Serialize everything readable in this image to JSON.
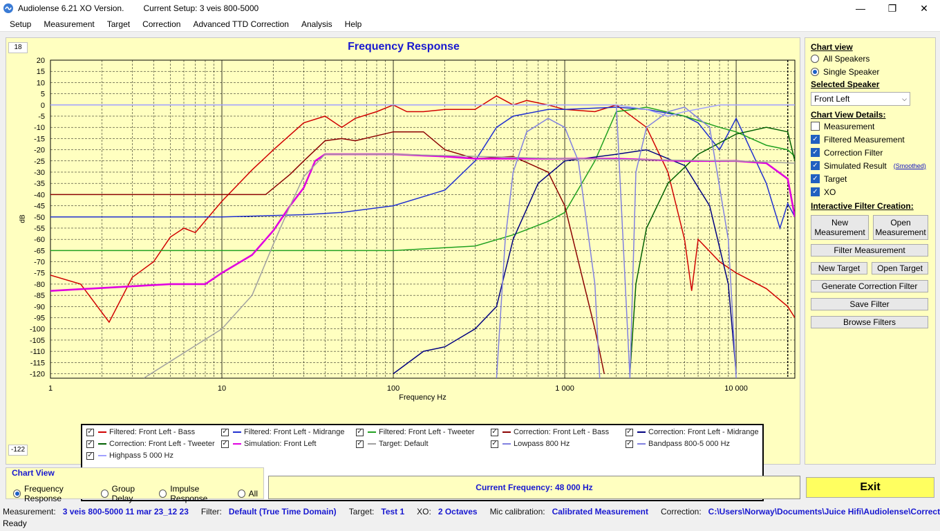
{
  "window": {
    "app_title": "Audiolense 6.21 XO Version.",
    "setup_title": "Current Setup: 3 veis 800-5000"
  },
  "menu": [
    "Setup",
    "Measurement",
    "Target",
    "Correction",
    "Advanced TTD Correction",
    "Analysis",
    "Help"
  ],
  "chart": {
    "title": "Frequency Response",
    "y_top_box": "18",
    "y_bottom_box": "-122",
    "ylabel": "dB",
    "xlabel": "Frequency Hz"
  },
  "chart_data": {
    "type": "line",
    "title": "Frequency Response",
    "xlabel": "Frequency Hz",
    "ylabel": "dB",
    "x_scale": "log",
    "xlim": [
      1,
      22000
    ],
    "ylim": [
      -122,
      20
    ],
    "x_ticks": [
      "1",
      "10",
      "100",
      "1 000",
      "10 000"
    ],
    "y_ticks": [
      "20",
      "15",
      "10",
      "5",
      "0",
      "-5",
      "-10",
      "-15",
      "-20",
      "-25",
      "-30",
      "-35",
      "-40",
      "-45",
      "-50",
      "-55",
      "-60",
      "-65",
      "-70",
      "-75",
      "-80",
      "-85",
      "-90",
      "-95",
      "-100",
      "-105",
      "-110",
      "-115",
      "-120"
    ],
    "grid": true,
    "series": [
      {
        "name": "Filtered: Front Left - Bass",
        "color": "#d00000",
        "x": [
          1,
          1.5,
          2.2,
          3,
          4,
          5,
          6,
          7,
          10,
          15,
          20,
          30,
          40,
          50,
          60,
          80,
          100,
          120,
          150,
          200,
          300,
          400,
          500,
          600,
          800,
          1000,
          1500,
          2000,
          3000,
          4000,
          5000,
          5500,
          6000,
          8000,
          10000,
          15000,
          20000,
          22000
        ],
        "y": [
          -76,
          -80,
          -97,
          -77,
          -70,
          -59,
          -55,
          -57,
          -43,
          -29,
          -20,
          -8,
          -5,
          -10,
          -6,
          -3,
          0,
          -3,
          -3,
          -2,
          -2,
          4,
          0,
          2,
          0,
          -2,
          -3,
          0,
          -10,
          -30,
          -60,
          -83,
          -60,
          -70,
          -75,
          -82,
          -90,
          -95
        ]
      },
      {
        "name": "Filtered: Front Left - Midrange",
        "color": "#2030d0",
        "x": [
          1,
          10,
          30,
          50,
          100,
          200,
          300,
          400,
          500,
          800,
          1000,
          2000,
          3000,
          5000,
          6000,
          8000,
          10000,
          15000,
          18000,
          20000,
          22000
        ],
        "y": [
          -50,
          -50,
          -49,
          -48,
          -45,
          -38,
          -25,
          -10,
          -5,
          -2,
          -2,
          -1,
          -2,
          -5,
          -8,
          -20,
          -6,
          -35,
          -55,
          -44,
          -50
        ]
      },
      {
        "name": "Filtered: Front Left - Tweeter",
        "color": "#20a020",
        "x": [
          1,
          100,
          300,
          500,
          800,
          1000,
          1500,
          2000,
          2500,
          3000,
          5000,
          8000,
          10000,
          15000,
          20000,
          22000
        ],
        "y": [
          -65,
          -65,
          -63,
          -58,
          -52,
          -48,
          -25,
          -3,
          -2,
          -1,
          -5,
          -10,
          -12,
          -18,
          -20,
          -23
        ]
      },
      {
        "name": "Correction: Front Left - Bass",
        "color": "#8b0000",
        "x": [
          1,
          10,
          18,
          25,
          30,
          40,
          50,
          60,
          100,
          150,
          200,
          300,
          500,
          800,
          1000,
          1500,
          1700
        ],
        "y": [
          -40,
          -40,
          -40,
          -31,
          -25,
          -16,
          -15,
          -16,
          -12,
          -12,
          -20,
          -24,
          -23,
          -30,
          -45,
          -100,
          -120
        ]
      },
      {
        "name": "Correction: Front Left - Midrange",
        "color": "#000080",
        "x": [
          100,
          150,
          200,
          300,
          400,
          500,
          700,
          1000,
          2000,
          3000,
          5000,
          7000,
          9000,
          10000
        ],
        "y": [
          -120,
          -110,
          -108,
          -100,
          -90,
          -60,
          -35,
          -25,
          -22,
          -20,
          -27,
          -45,
          -80,
          -120
        ]
      },
      {
        "name": "Correction: Front Left - Tweeter",
        "color": "#006000",
        "x": [
          2400,
          2600,
          3000,
          4000,
          6000,
          10000,
          15000,
          20000,
          22000
        ],
        "y": [
          -120,
          -80,
          -55,
          -35,
          -22,
          -13,
          -10,
          -12,
          -25
        ]
      },
      {
        "name": "Simulation: Front Left",
        "color": "#e000e0",
        "x": [
          1,
          5,
          8,
          10,
          15,
          20,
          25,
          30,
          35,
          40,
          50,
          100,
          200,
          300,
          500,
          1000,
          2000,
          5000,
          10000,
          15000,
          20000,
          22000
        ],
        "y": [
          -83,
          -80,
          -80,
          -75,
          -67,
          -56,
          -45,
          -37,
          -25,
          -22,
          -22,
          -22,
          -23,
          -24,
          -24,
          -24,
          -24,
          -25,
          -25,
          -26,
          -33,
          -50
        ]
      },
      {
        "name": "Target: Default",
        "color": "#a0a0a0",
        "x": [
          3.5,
          10,
          15,
          20,
          25,
          30,
          40,
          60,
          100,
          1000,
          10000,
          22000
        ],
        "y": [
          -122,
          -100,
          -85,
          -62,
          -45,
          -32,
          -22,
          -22,
          -22,
          -24,
          -25,
          -26
        ]
      },
      {
        "name": "Lowpass  800 Hz",
        "color": "#8080e0",
        "x": [
          400,
          450,
          500,
          600,
          800,
          1000,
          1200,
          1500,
          1600
        ],
        "y": [
          -122,
          -60,
          -30,
          -12,
          -6,
          -10,
          -25,
          -80,
          -122
        ]
      },
      {
        "name": "Bandpass   800-5 000 Hz",
        "color": "#8080e0",
        "x": [
          400,
          450,
          500,
          600,
          800,
          1000,
          1500,
          2000,
          2400,
          2600,
          3000,
          4000,
          5000,
          7000,
          9000,
          10000
        ],
        "y": [
          0,
          0,
          0,
          0,
          0,
          0,
          0,
          0,
          -122,
          -30,
          -10,
          -3,
          -1,
          -10,
          -60,
          -122
        ]
      },
      {
        "name": "Highpass  5 000 Hz",
        "color": "#a0a0ff",
        "x": [
          1,
          100,
          1000,
          2000,
          3000,
          4000,
          5000,
          8000,
          10000,
          15000,
          22000
        ],
        "y": [
          0,
          0,
          0,
          0,
          -2,
          -5,
          -3,
          0,
          0,
          0,
          0
        ]
      }
    ]
  },
  "legend": [
    {
      "label": "Filtered: Front Left - Bass",
      "color": "#d00000"
    },
    {
      "label": "Filtered: Front Left - Midrange",
      "color": "#2030d0"
    },
    {
      "label": "Filtered: Front Left - Tweeter",
      "color": "#20a020"
    },
    {
      "label": "Correction: Front Left - Bass",
      "color": "#8b0000"
    },
    {
      "label": "Correction: Front Left - Midrange",
      "color": "#000080"
    },
    {
      "label": "Correction: Front Left - Tweeter",
      "color": "#006000"
    },
    {
      "label": "Simulation: Front Left",
      "color": "#e000e0"
    },
    {
      "label": "Target: Default",
      "color": "#a0a0a0"
    },
    {
      "label": "Lowpass  800 Hz",
      "color": "#8080e0"
    },
    {
      "label": "Bandpass   800-5 000 Hz",
      "color": "#8080e0"
    },
    {
      "label": "Highpass  5 000 Hz",
      "color": "#a0a0ff"
    }
  ],
  "right_panel": {
    "chart_view_title": "Chart view",
    "all_speakers": "All Speakers",
    "single_speaker": "Single Speaker",
    "selected_speaker_title": "Selected Speaker",
    "selected_speaker_value": "Front Left",
    "details_title": "Chart View Details:",
    "measurement": "Measurement",
    "filtered_measurement": "Filtered Measurement",
    "correction_filter": "Correction Filter",
    "simulated_result": "Simulated Result",
    "smoothed": "(Smoothed)",
    "target": "Target",
    "xo": "XO",
    "interactive_title": "Interactive Filter Creation:",
    "new_measurement": "New Measurement",
    "open_measurement": "Open Measurement",
    "filter_measurement": "Filter Measurement",
    "new_target": "New Target",
    "open_target": "Open Target",
    "generate_correction_filter": "Generate Correction Filter",
    "save_filter": "Save Filter",
    "browse_filters": "Browse Filters"
  },
  "bottom": {
    "chart_view_title": "Chart View",
    "opt_frequency": "Frequency Response",
    "opt_group": "Group Delay",
    "opt_impulse": "Impulse Response",
    "opt_all": "All",
    "current_frequency": "Current Frequency: 48 000 Hz",
    "exit": "Exit"
  },
  "status": {
    "measurement_label": "Measurement:",
    "measurement_value": "3 veis 800-5000 11 mar 23_12 23",
    "filter_label": "Filter:",
    "filter_value": "Default (True Time Domain)",
    "target_label": "Target:",
    "target_value": "Test 1",
    "xo_label": "XO:",
    "xo_value": "2 Octaves",
    "mic_label": "Mic calibration:",
    "mic_value": "Calibrated Measurement",
    "correction_label": "Correction:",
    "correction_value": "C:\\Users\\Norway\\Documents\\Juice Hifi\\Audiolense\\Correction\\umi",
    "ready": "Ready"
  }
}
